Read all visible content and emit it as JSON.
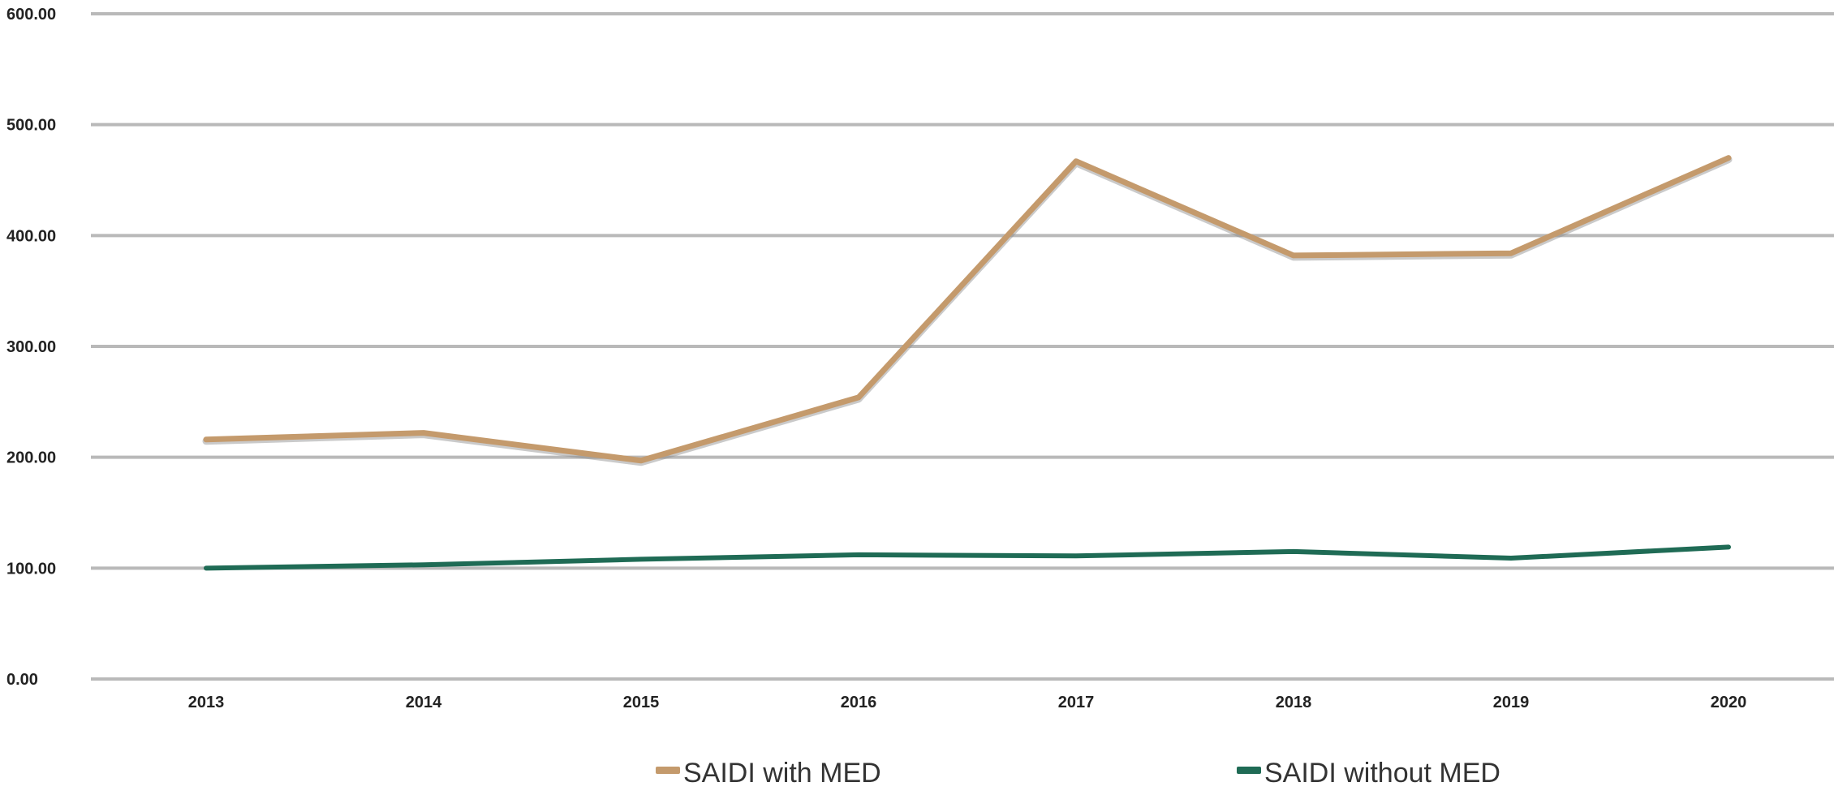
{
  "chart_data": {
    "type": "line",
    "title": "",
    "xlabel": "",
    "ylabel": "",
    "categories": [
      "2013",
      "2014",
      "2015",
      "2016",
      "2017",
      "2018",
      "2019",
      "2020"
    ],
    "y_ticks": [
      "0.00",
      "100.00",
      "200.00",
      "300.00",
      "400.00",
      "500.00",
      "600.00"
    ],
    "ylim": [
      0,
      600
    ],
    "grid": "horizontal",
    "legend_position": "bottom",
    "series": [
      {
        "name": "SAIDI with MED",
        "color": "#c49a6c",
        "values": [
          216,
          222,
          197,
          254,
          467,
          382,
          384,
          470
        ]
      },
      {
        "name": "SAIDI without MED",
        "color": "#1f6b55",
        "values": [
          100,
          103,
          108,
          112,
          111,
          115,
          109,
          119
        ]
      }
    ]
  }
}
